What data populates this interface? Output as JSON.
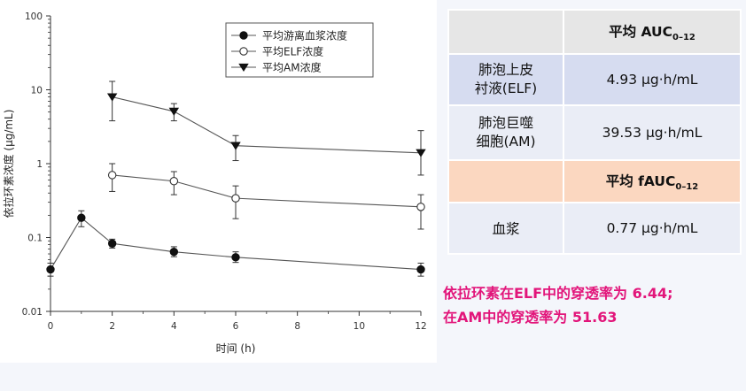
{
  "chart_data": {
    "type": "line",
    "x": [
      0,
      1,
      2,
      4,
      6,
      12
    ],
    "xticks": [
      "0",
      "2",
      "4",
      "6",
      "8",
      "10",
      "12"
    ],
    "xlim": [
      0,
      12
    ],
    "yscale": "log",
    "ylim": [
      0.01,
      100
    ],
    "yticks": [
      "0.01",
      "0.1",
      "1",
      "10",
      "100"
    ],
    "xlabel": "时间 (h)",
    "ylabel": "依拉环素浓度 (μg/mL)",
    "legend_position": "top-right",
    "series": [
      {
        "name": "平均游离血浆浓度",
        "marker": "filled-circle",
        "x": [
          0,
          1,
          2,
          4,
          6,
          12
        ],
        "y": [
          0.037,
          0.185,
          0.083,
          0.064,
          0.054,
          0.037
        ],
        "err_low": [
          0.03,
          0.14,
          0.072,
          0.055,
          0.046,
          0.03
        ],
        "err_high": [
          0.045,
          0.23,
          0.095,
          0.075,
          0.064,
          0.045
        ]
      },
      {
        "name": "平均ELF浓度",
        "marker": "open-circle",
        "x": [
          2,
          4,
          6,
          12
        ],
        "y": [
          0.7,
          0.58,
          0.34,
          0.26
        ],
        "err_low": [
          0.42,
          0.38,
          0.18,
          0.13
        ],
        "err_high": [
          1.0,
          0.78,
          0.5,
          0.38
        ]
      },
      {
        "name": "平均AM浓度",
        "marker": "filled-triangle-down",
        "x": [
          2,
          4,
          6,
          12
        ],
        "y": [
          8.0,
          5.1,
          1.75,
          1.4
        ],
        "err_low": [
          3.8,
          3.8,
          1.1,
          0.7
        ],
        "err_high": [
          13.0,
          6.5,
          2.4,
          2.8
        ]
      }
    ]
  },
  "table": {
    "header1": {
      "prefix": "平均 AUC",
      "sub": "0–12"
    },
    "header2": {
      "prefix": "平均 fAUC",
      "sub": "0–12"
    },
    "rows": [
      {
        "label_line1": "肺泡上皮",
        "label_line2": "衬液(ELF)",
        "value": "4.93 μg·h/mL"
      },
      {
        "label_line1": "肺泡巨噬",
        "label_line2": "细胞(AM)",
        "value": "39.53 μg·h/mL"
      }
    ],
    "plasma": {
      "label": "血浆",
      "value": "0.77 μg·h/mL"
    }
  },
  "footnote": {
    "line1": "依拉环素在ELF中的穿透率为 6.44;",
    "line2": "在AM中的穿透率为 51.63"
  },
  "colors": {
    "highlight_text": "#e2157a",
    "header_peach": "#fbd7c0",
    "cell_blue": "#d6dcf0",
    "cell_gray": "#e6e6e6"
  }
}
